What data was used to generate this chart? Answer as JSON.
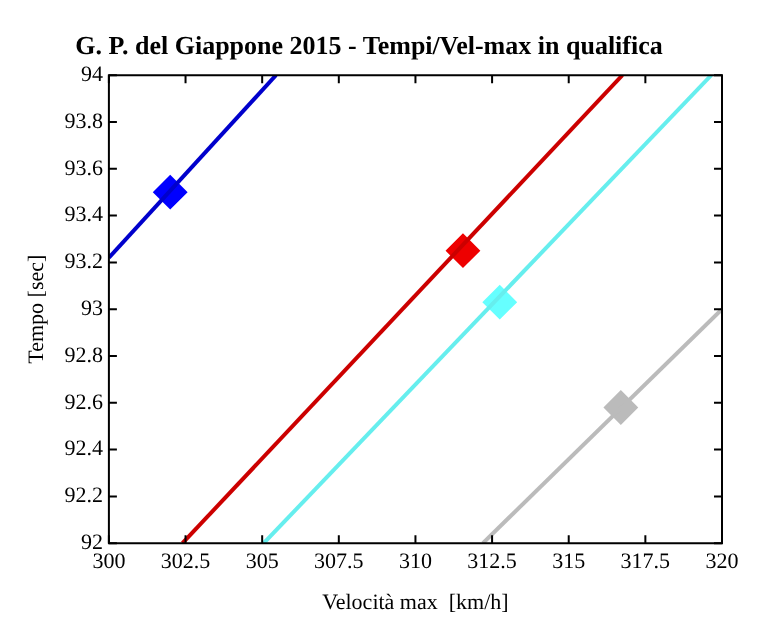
{
  "chart_data": {
    "type": "line",
    "title": "G. P. del Giappone 2015 - Tempi/Vel-max in qualifica",
    "xlabel": "Velocità max  [km/h]",
    "ylabel": "Tempo [sec]",
    "xlim": [
      300,
      320
    ],
    "xticks": [
      300,
      302.5,
      305,
      307.5,
      310,
      312.5,
      315,
      317.5,
      320
    ],
    "ylim": [
      92,
      94
    ],
    "yticks": [
      92,
      92.2,
      92.4,
      92.6,
      92.8,
      93,
      93.2,
      93.4,
      93.6,
      93.8,
      94
    ],
    "grid": false,
    "legend": false,
    "line_style": "solid",
    "marker": "diamond",
    "series": [
      {
        "marker": "none",
        "color": "#0000cc",
        "x": [
          300,
          305.45
        ],
        "values": [
          93.22,
          94
        ]
      },
      {
        "marker": "none",
        "color": "#cc0000",
        "x": [
          302.4,
          316.75
        ],
        "values": [
          92,
          94
        ]
      },
      {
        "marker": "none",
        "color": "#66eeee",
        "x": [
          305.05,
          319.65
        ],
        "values": [
          92,
          94
        ]
      },
      {
        "marker": "none",
        "color": "#bbbbbb",
        "x": [
          312.2,
          320
        ],
        "values": [
          92,
          93.0
        ]
      },
      {
        "type": "scatter",
        "color": "#0000ff",
        "x": [
          302.0
        ],
        "values": [
          93.5
        ]
      },
      {
        "type": "scatter",
        "color": "#ee0000",
        "x": [
          311.55
        ],
        "values": [
          93.25
        ]
      },
      {
        "type": "scatter",
        "color": "#66ffff",
        "x": [
          312.75
        ],
        "values": [
          93.03
        ]
      },
      {
        "type": "scatter",
        "color": "#bbbbbb",
        "x": [
          316.7
        ],
        "values": [
          92.58
        ]
      }
    ]
  }
}
